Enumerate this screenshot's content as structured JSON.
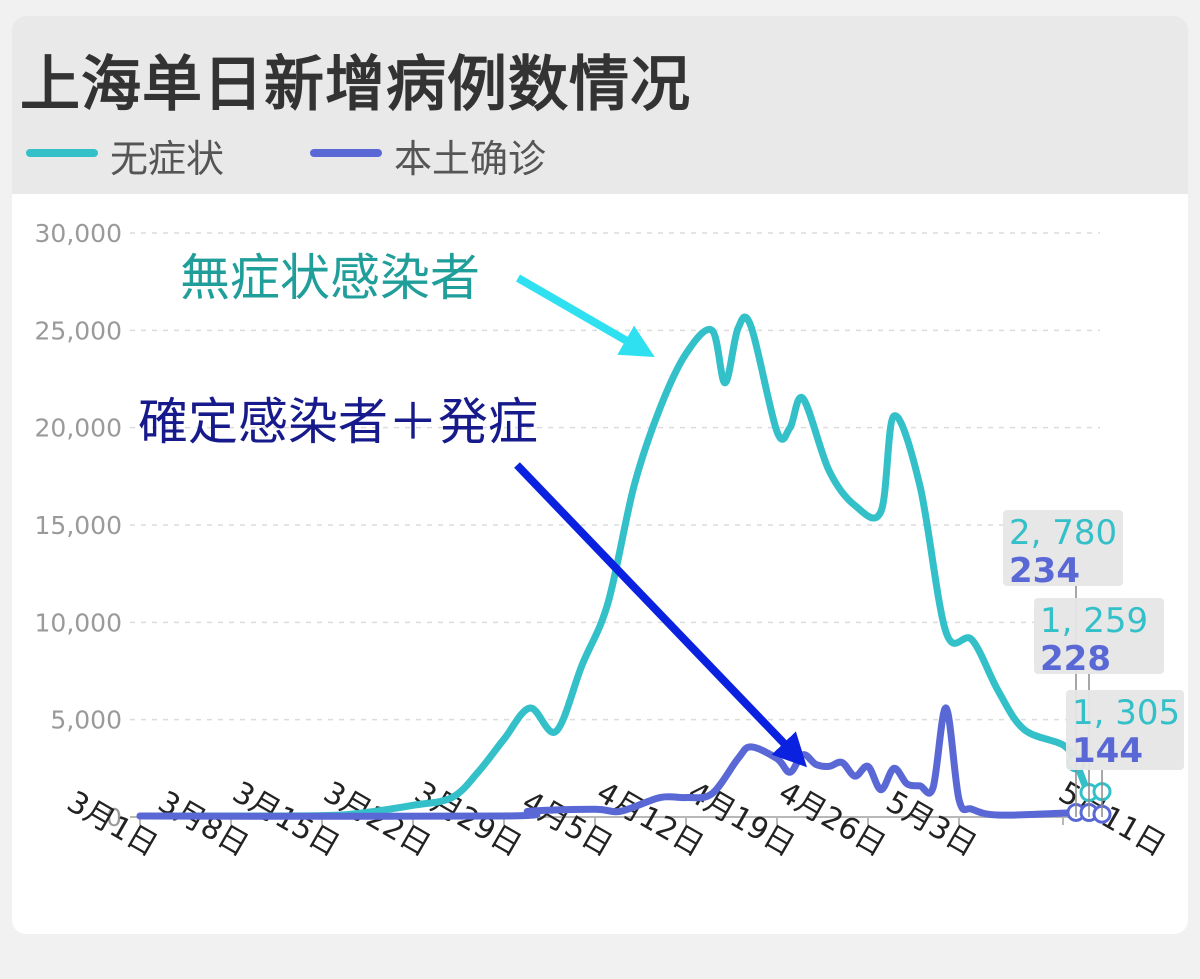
{
  "title": "上海单日新增病例数情况",
  "legend": [
    {
      "label": "无症状",
      "color": "#34c0c9"
    },
    {
      "label": "本土确诊",
      "color": "#5a68d6"
    }
  ],
  "annotations": [
    {
      "text": "無症状感染者",
      "color": "#1f9e9a",
      "arrow_color": "#2ee0f0"
    },
    {
      "text": "確定感染者＋発症",
      "color": "#161a8a",
      "arrow_color": "#0a22e0"
    }
  ],
  "chart_data": {
    "type": "line",
    "title": "上海单日新增病例数情况",
    "x_start": "3月1日",
    "x_end": "5月11日",
    "x_ticks": [
      "3月1日",
      "3月8日",
      "3月15日",
      "3月22日",
      "3月29日",
      "4月5日",
      "4月12日",
      "4月19日",
      "4月26日",
      "5月3日",
      "5月11日"
    ],
    "y_ticks": [
      "0",
      "5,000",
      "10,000",
      "15,000",
      "20,000",
      "25,000",
      "30,000"
    ],
    "ylim": [
      0,
      30000
    ],
    "grid": true,
    "legend_position": "top-left",
    "series": [
      {
        "name": "无症状",
        "color": "#34c0c9",
        "points": [
          [
            "3月1日",
            0
          ],
          [
            "3月8日",
            10
          ],
          [
            "3月15日",
            70
          ],
          [
            "3月18日",
            200
          ],
          [
            "3月22日",
            600
          ],
          [
            "3月25日",
            1000
          ],
          [
            "3月27日",
            2300
          ],
          [
            "3月29日",
            4000
          ],
          [
            "3月31日",
            5600
          ],
          [
            "4月2日",
            4400
          ],
          [
            "4月4日",
            7800
          ],
          [
            "4月6日",
            11000
          ],
          [
            "4月8日",
            17000
          ],
          [
            "4月10日",
            21000
          ],
          [
            "4月12日",
            23800
          ],
          [
            "4月14日",
            25000
          ],
          [
            "4月15日",
            22300
          ],
          [
            "4月16日",
            25100
          ],
          [
            "4月17日",
            25200
          ],
          [
            "4月19日",
            19800
          ],
          [
            "4月20日",
            20000
          ],
          [
            "4月21日",
            21500
          ],
          [
            "4月23日",
            17800
          ],
          [
            "4月25日",
            16000
          ],
          [
            "4月27日",
            15700
          ],
          [
            "4月28日",
            20600
          ],
          [
            "4月30日",
            17000
          ],
          [
            "5月2日",
            9500
          ],
          [
            "5月4日",
            9100
          ],
          [
            "5月6日",
            6500
          ],
          [
            "5月8日",
            4500
          ],
          [
            "5月11日",
            3700
          ],
          [
            "5月12日",
            2780
          ],
          [
            "5月13日",
            1259
          ],
          [
            "5月14日",
            1305
          ]
        ]
      },
      {
        "name": "本土确诊",
        "color": "#5a68d6",
        "points": [
          [
            "3月1日",
            0
          ],
          [
            "3月29日",
            50
          ],
          [
            "3月31日",
            300
          ],
          [
            "4月5日",
            400
          ],
          [
            "4月7日",
            300
          ],
          [
            "4月10日",
            1000
          ],
          [
            "4月12日",
            1000
          ],
          [
            "4月14日",
            1200
          ],
          [
            "4月16日",
            3000
          ],
          [
            "4月17日",
            3600
          ],
          [
            "4月19日",
            3000
          ],
          [
            "4月20日",
            2300
          ],
          [
            "4月21日",
            3200
          ],
          [
            "4月22日",
            2700
          ],
          [
            "4月23日",
            2600
          ],
          [
            "4月24日",
            2800
          ],
          [
            "4月25日",
            2100
          ],
          [
            "4月26日",
            2600
          ],
          [
            "4月27日",
            1400
          ],
          [
            "4月28日",
            2500
          ],
          [
            "4月29日",
            1700
          ],
          [
            "4月30日",
            1600
          ],
          [
            "5月1日",
            1500
          ],
          [
            "5月2日",
            5600
          ],
          [
            "5月3日",
            900
          ],
          [
            "5月4日",
            400
          ],
          [
            "5月6日",
            100
          ],
          [
            "5月11日",
            200
          ],
          [
            "5月12日",
            234
          ],
          [
            "5月13日",
            228
          ],
          [
            "5月14日",
            144
          ]
        ]
      }
    ],
    "end_labels": [
      {
        "asymptomatic": "2, 780",
        "confirmed": "234"
      },
      {
        "asymptomatic": "1, 259",
        "confirmed": "228"
      },
      {
        "asymptomatic": "1, 305",
        "confirmed": "144"
      }
    ]
  }
}
